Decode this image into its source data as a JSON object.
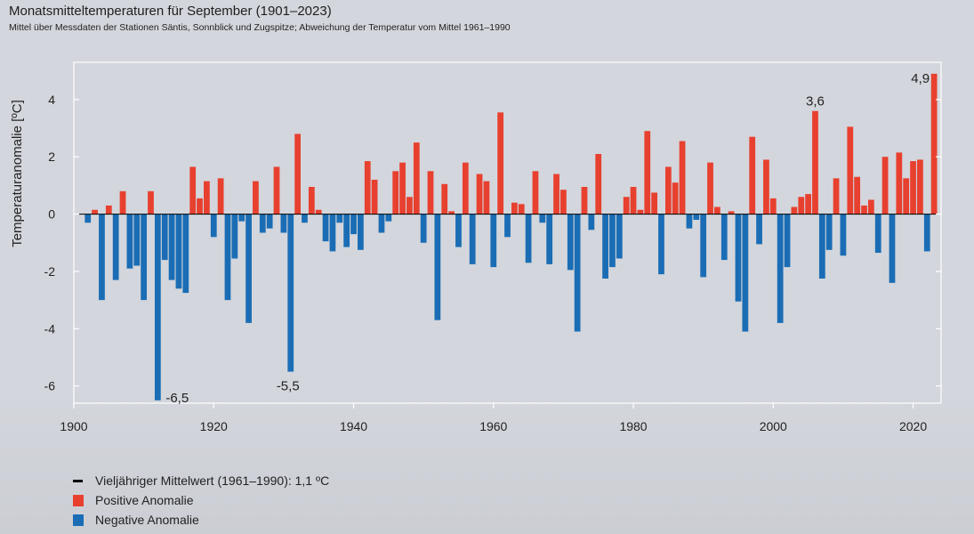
{
  "title": "Monatsmitteltemperaturen für September (1901–2023)",
  "subtitle": "Mittel über Messdaten der Stationen Säntis, Sonnblick und Zugspitze; Abweichung der Temperatur vom Mittel 1961–1990",
  "colors": {
    "positive": "#e8402f",
    "negative": "#1a6db5",
    "mean_line": "#000000",
    "axis": "#ffffff"
  },
  "legend": {
    "mean": "Vieljähriger Mittelwert (1961–1990): 1,1 ºC",
    "positive": "Positive Anomalie",
    "negative": "Negative Anomalie"
  },
  "chart_data": {
    "type": "bar",
    "ylabel": "Temperaturanomalie [ºC]",
    "xlabel": "",
    "xlim": [
      1900,
      2024
    ],
    "ylim": [
      -6.6,
      5.3
    ],
    "xticks": [
      1900,
      1920,
      1940,
      1960,
      1980,
      2000,
      2020
    ],
    "yticks": [
      4,
      2,
      0,
      -2,
      -4,
      -6
    ],
    "ytick_labels": [
      "4",
      "2",
      "0",
      "-2",
      "-4",
      "-6"
    ],
    "grid": false,
    "years": [
      1901,
      1902,
      1903,
      1904,
      1905,
      1906,
      1907,
      1908,
      1909,
      1910,
      1911,
      1912,
      1913,
      1914,
      1915,
      1916,
      1917,
      1918,
      1919,
      1920,
      1921,
      1922,
      1923,
      1924,
      1925,
      1926,
      1927,
      1928,
      1929,
      1930,
      1931,
      1932,
      1933,
      1934,
      1935,
      1936,
      1937,
      1938,
      1939,
      1940,
      1941,
      1942,
      1943,
      1944,
      1945,
      1946,
      1947,
      1948,
      1949,
      1950,
      1951,
      1952,
      1953,
      1954,
      1955,
      1956,
      1957,
      1958,
      1959,
      1960,
      1961,
      1962,
      1963,
      1964,
      1965,
      1966,
      1967,
      1968,
      1969,
      1970,
      1971,
      1972,
      1973,
      1974,
      1975,
      1976,
      1977,
      1978,
      1979,
      1980,
      1981,
      1982,
      1983,
      1984,
      1985,
      1986,
      1987,
      1988,
      1989,
      1990,
      1991,
      1992,
      1993,
      1994,
      1995,
      1996,
      1997,
      1998,
      1999,
      2000,
      2001,
      2002,
      2003,
      2004,
      2005,
      2006,
      2007,
      2008,
      2009,
      2010,
      2011,
      2012,
      2013,
      2014,
      2015,
      2016,
      2017,
      2018,
      2019,
      2020,
      2021,
      2022,
      2023
    ],
    "values": [
      0.0,
      -0.3,
      0.15,
      -3.0,
      0.3,
      -2.3,
      0.8,
      -1.9,
      -1.8,
      -3.0,
      0.8,
      -6.5,
      -1.6,
      -2.3,
      -2.6,
      -2.75,
      1.65,
      0.55,
      1.15,
      -0.8,
      1.25,
      -3.0,
      -1.55,
      -0.25,
      -3.8,
      1.15,
      -0.65,
      -0.5,
      1.65,
      -0.65,
      -5.5,
      2.8,
      -0.3,
      0.95,
      0.15,
      -0.95,
      -1.3,
      -0.3,
      -1.15,
      -0.7,
      -1.25,
      1.85,
      1.2,
      -0.65,
      -0.25,
      1.5,
      1.8,
      0.6,
      2.5,
      -1.0,
      1.5,
      -3.7,
      1.05,
      0.1,
      -1.15,
      1.8,
      -1.75,
      1.4,
      1.15,
      -1.85,
      3.55,
      -0.8,
      0.4,
      0.35,
      -1.7,
      1.5,
      -0.3,
      -1.75,
      1.4,
      0.85,
      -1.95,
      -4.1,
      0.95,
      -0.55,
      2.1,
      -2.25,
      -1.85,
      -1.55,
      0.6,
      0.95,
      0.15,
      2.9,
      0.75,
      -2.1,
      1.65,
      1.1,
      2.55,
      -0.5,
      -0.2,
      -2.2,
      1.8,
      0.25,
      -1.6,
      0.1,
      -3.05,
      -4.1,
      2.7,
      -1.05,
      1.9,
      0.55,
      -3.8,
      -1.85,
      0.25,
      0.6,
      0.7,
      3.6,
      -2.25,
      -1.25,
      1.25,
      -1.45,
      3.05,
      1.3,
      0.3,
      0.5,
      -1.35,
      2.0,
      -2.4,
      2.15,
      1.25,
      1.85,
      1.9,
      -1.3,
      4.9
    ],
    "annotations": [
      {
        "year": 1912,
        "label": "-6,5"
      },
      {
        "year": 1931,
        "label": "-5,5"
      },
      {
        "year": 2006,
        "label": "3,6"
      },
      {
        "year": 2023,
        "label": "4,9"
      }
    ]
  }
}
